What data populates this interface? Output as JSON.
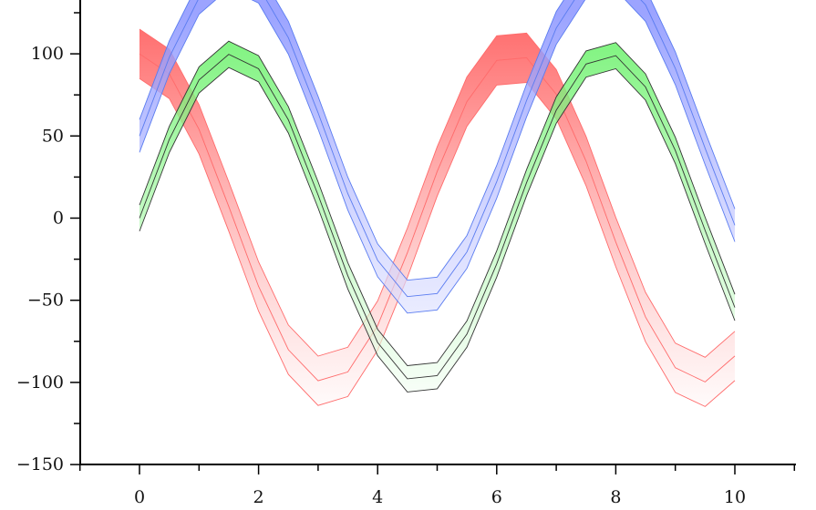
{
  "chart_data": {
    "type": "area",
    "title": "",
    "xlabel": "",
    "ylabel": "",
    "xlim": [
      -1,
      11
    ],
    "ylim": [
      -150,
      133
    ],
    "grid": false,
    "x_ticks": [
      "0",
      "2",
      "4",
      "6",
      "8",
      "10"
    ],
    "y_ticks": [
      "-150",
      "-100",
      "-50",
      "0",
      "50",
      "100"
    ],
    "x": [
      0,
      0.5,
      1,
      1.5,
      2,
      2.5,
      3,
      3.5,
      4,
      4.5,
      5,
      5.5,
      6,
      6.5,
      7,
      7.5,
      8,
      8.5,
      9,
      9.5,
      10
    ],
    "series": [
      {
        "color": "#ff4d4d",
        "stroke": "#ff6b6b",
        "band": 15,
        "values": [
          100,
          87.8,
          54.0,
          7.1,
          -41.6,
          -80.1,
          -99.0,
          -93.6,
          -65.4,
          -21.1,
          28.4,
          70.9,
          96.0,
          97.6,
          75.4,
          34.7,
          -14.6,
          -60.2,
          -91.1,
          -99.7,
          -83.9
        ]
      },
      {
        "color": "#5cf05c",
        "stroke": "#333333",
        "band": 8,
        "values": [
          0,
          47.9,
          84.1,
          99.7,
          90.9,
          59.8,
          14.1,
          -35.1,
          -75.7,
          -97.8,
          -95.9,
          -70.6,
          -27.9,
          21.5,
          65.7,
          93.8,
          98.9,
          79.8,
          41.2,
          -7.5,
          -54.4
        ]
      },
      {
        "color": "#8a94ff",
        "stroke": "#5a7cf0",
        "band": 10,
        "values": [
          50,
          97.9,
          134.1,
          149.7,
          140.9,
          109.8,
          64.1,
          14.9,
          -25.7,
          -47.8,
          -45.9,
          -20.6,
          22.1,
          71.5,
          115.7,
          143.8,
          148.9,
          129.8,
          91.2,
          42.5,
          -4.4
        ]
      }
    ]
  }
}
